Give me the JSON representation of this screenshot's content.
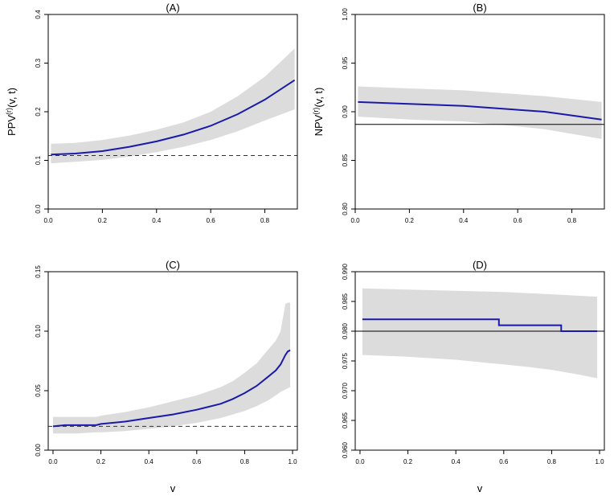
{
  "chart_data": [
    {
      "type": "line",
      "title": "(A)",
      "ylabel_main": "PPV",
      "ylabel_sup": "(r)",
      "ylabel_rest": "(v, t)",
      "xlabel": "",
      "xlim": [
        0,
        0.92
      ],
      "ylim": [
        0,
        0.4
      ],
      "xticks": [
        0,
        0.2,
        0.4,
        0.6,
        0.8
      ],
      "xtick_labels": [
        "0.0",
        "0.2",
        "0.4",
        "0.6",
        "0.8"
      ],
      "yticks": [
        0,
        0.1,
        0.2,
        0.3,
        0.4
      ],
      "ytick_labels": [
        "0.0",
        "0.1",
        "0.2",
        "0.3",
        "0.4"
      ],
      "reference": {
        "y": 0.11,
        "style": "dashed"
      },
      "step": false,
      "series": [
        {
          "name": "estimate",
          "x": [
            0.01,
            0.1,
            0.2,
            0.3,
            0.4,
            0.5,
            0.6,
            0.7,
            0.8,
            0.91
          ],
          "y": [
            0.112,
            0.114,
            0.119,
            0.128,
            0.139,
            0.153,
            0.171,
            0.195,
            0.225,
            0.265
          ]
        },
        {
          "name": "lower",
          "x": [
            0.01,
            0.1,
            0.2,
            0.3,
            0.4,
            0.5,
            0.6,
            0.7,
            0.8,
            0.91
          ],
          "y": [
            0.094,
            0.097,
            0.101,
            0.108,
            0.117,
            0.128,
            0.142,
            0.16,
            0.182,
            0.205
          ]
        },
        {
          "name": "upper",
          "x": [
            0.01,
            0.1,
            0.2,
            0.3,
            0.4,
            0.5,
            0.6,
            0.7,
            0.8,
            0.91
          ],
          "y": [
            0.134,
            0.136,
            0.142,
            0.151,
            0.163,
            0.178,
            0.2,
            0.232,
            0.272,
            0.33
          ]
        }
      ]
    },
    {
      "type": "line",
      "title": "(B)",
      "ylabel_main": "NPV",
      "ylabel_sup": "(r)",
      "ylabel_rest": "(v, t)",
      "xlabel": "",
      "xlim": [
        0,
        0.92
      ],
      "ylim": [
        0.8,
        1.0
      ],
      "xticks": [
        0,
        0.2,
        0.4,
        0.6,
        0.8
      ],
      "xtick_labels": [
        "0.0",
        "0.2",
        "0.4",
        "0.6",
        "0.8"
      ],
      "yticks": [
        0.8,
        0.85,
        0.9,
        0.95,
        1.0
      ],
      "ytick_labels": [
        "0.80",
        "0.85",
        "0.90",
        "0.95",
        "1.00"
      ],
      "reference": {
        "y": 0.887,
        "style": "solid"
      },
      "step": false,
      "series": [
        {
          "name": "estimate",
          "x": [
            0.01,
            0.2,
            0.4,
            0.6,
            0.7,
            0.91
          ],
          "y": [
            0.91,
            0.908,
            0.906,
            0.902,
            0.9,
            0.892
          ]
        },
        {
          "name": "lower",
          "x": [
            0.01,
            0.2,
            0.4,
            0.6,
            0.7,
            0.91
          ],
          "y": [
            0.895,
            0.892,
            0.89,
            0.885,
            0.882,
            0.872
          ]
        },
        {
          "name": "upper",
          "x": [
            0.01,
            0.2,
            0.4,
            0.6,
            0.7,
            0.91
          ],
          "y": [
            0.926,
            0.924,
            0.922,
            0.918,
            0.916,
            0.91
          ]
        }
      ]
    },
    {
      "type": "line",
      "title": "(C)",
      "ylabel_main": "",
      "ylabel_sup": "",
      "ylabel_rest": "",
      "xlabel": "v",
      "xlim": [
        -0.02,
        1.02
      ],
      "ylim": [
        0,
        0.15
      ],
      "xticks": [
        0,
        0.2,
        0.4,
        0.6,
        0.8,
        1.0
      ],
      "xtick_labels": [
        "0.0",
        "0.2",
        "0.4",
        "0.6",
        "0.8",
        "1.0"
      ],
      "yticks": [
        0,
        0.05,
        0.1,
        0.15
      ],
      "ytick_labels": [
        "0.00",
        "0.05",
        "0.10",
        "0.15"
      ],
      "reference": {
        "y": 0.02,
        "style": "dashed"
      },
      "step": false,
      "series": [
        {
          "name": "estimate",
          "x": [
            0.0,
            0.05,
            0.1,
            0.18,
            0.2,
            0.3,
            0.4,
            0.5,
            0.6,
            0.7,
            0.75,
            0.8,
            0.85,
            0.9,
            0.93,
            0.95,
            0.97,
            0.98,
            0.99
          ],
          "y": [
            0.02,
            0.021,
            0.021,
            0.021,
            0.022,
            0.024,
            0.027,
            0.03,
            0.034,
            0.039,
            0.043,
            0.048,
            0.054,
            0.062,
            0.067,
            0.072,
            0.08,
            0.083,
            0.084
          ]
        },
        {
          "name": "lower",
          "x": [
            0.0,
            0.05,
            0.1,
            0.18,
            0.2,
            0.3,
            0.4,
            0.5,
            0.6,
            0.7,
            0.75,
            0.8,
            0.85,
            0.9,
            0.93,
            0.95,
            0.97,
            0.98,
            0.99
          ],
          "y": [
            0.014,
            0.014,
            0.014,
            0.015,
            0.015,
            0.016,
            0.018,
            0.02,
            0.023,
            0.027,
            0.03,
            0.033,
            0.037,
            0.042,
            0.046,
            0.049,
            0.051,
            0.052,
            0.053
          ]
        },
        {
          "name": "upper",
          "x": [
            0.0,
            0.05,
            0.1,
            0.18,
            0.2,
            0.3,
            0.4,
            0.5,
            0.6,
            0.7,
            0.75,
            0.8,
            0.85,
            0.9,
            0.93,
            0.95,
            0.97,
            0.98,
            0.99
          ],
          "y": [
            0.028,
            0.028,
            0.028,
            0.028,
            0.029,
            0.032,
            0.036,
            0.041,
            0.046,
            0.053,
            0.058,
            0.065,
            0.073,
            0.085,
            0.092,
            0.1,
            0.123,
            0.124,
            0.124
          ]
        }
      ]
    },
    {
      "type": "line",
      "title": "(D)",
      "ylabel_main": "",
      "ylabel_sup": "",
      "ylabel_rest": "",
      "xlabel": "v",
      "xlim": [
        -0.02,
        1.02
      ],
      "ylim": [
        0.96,
        0.99
      ],
      "xticks": [
        0,
        0.2,
        0.4,
        0.6,
        0.8,
        1.0
      ],
      "xtick_labels": [
        "0.0",
        "0.2",
        "0.4",
        "0.6",
        "0.8",
        "1.0"
      ],
      "yticks": [
        0.96,
        0.965,
        0.97,
        0.975,
        0.98,
        0.985,
        0.99
      ],
      "ytick_labels": [
        "0.960",
        "0.965",
        "0.970",
        "0.975",
        "0.980",
        "0.985",
        "0.990"
      ],
      "reference": {
        "y": 0.98,
        "style": "solid"
      },
      "step": true,
      "series": [
        {
          "name": "estimate",
          "x": [
            0.01,
            0.58,
            0.84,
            0.99
          ],
          "y": [
            0.982,
            0.981,
            0.98,
            0.98
          ]
        },
        {
          "name": "lower",
          "x": [
            0.01,
            0.2,
            0.4,
            0.5,
            0.6,
            0.7,
            0.8,
            0.9,
            0.99
          ],
          "y": [
            0.976,
            0.9757,
            0.9752,
            0.9748,
            0.9744,
            0.974,
            0.9735,
            0.9728,
            0.9721
          ]
        },
        {
          "name": "upper",
          "x": [
            0.01,
            0.2,
            0.4,
            0.6,
            0.8,
            0.99
          ],
          "y": [
            0.9872,
            0.987,
            0.9868,
            0.9866,
            0.9862,
            0.9858
          ]
        }
      ]
    }
  ]
}
